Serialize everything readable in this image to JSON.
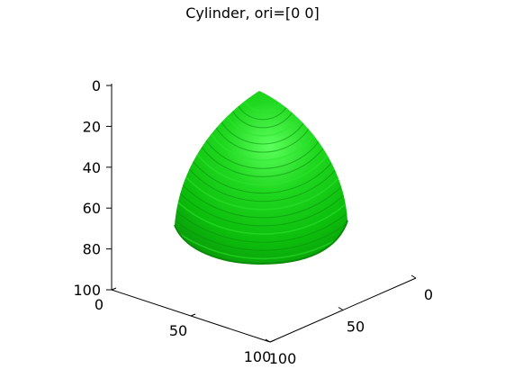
{
  "chart_data": {
    "type": "surface3d",
    "title": "Cylinder, ori=[0 0]",
    "colors": {
      "surface_base": "#0cbd0c",
      "surface_light": "#2ee62e",
      "surface_dark": "#0a8f0a"
    },
    "axes": {
      "vertical": {
        "label": "",
        "ticks": [
          "0",
          "20",
          "40",
          "60",
          "80",
          "100"
        ],
        "values": [
          0,
          20,
          40,
          60,
          80,
          100
        ],
        "range": [
          0,
          100
        ],
        "reversed": true
      },
      "left_depth": {
        "label": "",
        "ticks": [
          "0",
          "50",
          "100"
        ],
        "values": [
          0,
          50,
          100
        ],
        "range": [
          0,
          100
        ]
      },
      "right_depth": {
        "label": "",
        "ticks": [
          "0",
          "50",
          "100"
        ],
        "values": [
          0,
          50,
          100
        ],
        "range": [
          0,
          100
        ]
      }
    },
    "object": {
      "shape": "cylinder",
      "orientation": "[0 0]"
    },
    "grid": "off"
  }
}
